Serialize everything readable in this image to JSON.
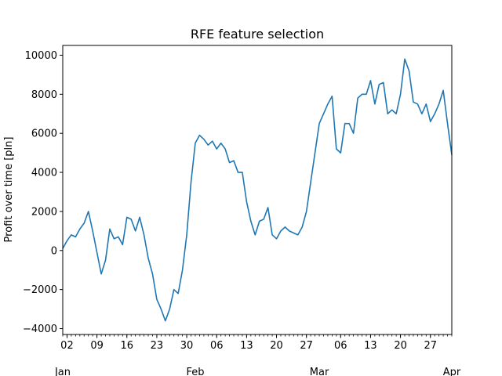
{
  "chart_data": {
    "type": "line",
    "title": "RFE feature selection",
    "xlabel": "",
    "ylabel": "Profit over time [pln]",
    "x_type": "date",
    "xlim": [
      "2016-01-01",
      "2016-04-01"
    ],
    "ylim": [
      -4300,
      10500
    ],
    "y_ticks": [
      -4000,
      -2000,
      0,
      2000,
      4000,
      6000,
      8000,
      10000
    ],
    "y_tick_labels": [
      "−4000",
      "−2000",
      "0",
      "2000",
      "4000",
      "6000",
      "8000",
      "10000"
    ],
    "x_day_ticks": [
      {
        "date": "2016-01-02",
        "label": "02"
      },
      {
        "date": "2016-01-09",
        "label": "09"
      },
      {
        "date": "2016-01-16",
        "label": "16"
      },
      {
        "date": "2016-01-23",
        "label": "23"
      },
      {
        "date": "2016-01-30",
        "label": "30"
      },
      {
        "date": "2016-02-06",
        "label": "06"
      },
      {
        "date": "2016-02-13",
        "label": "13"
      },
      {
        "date": "2016-02-20",
        "label": "20"
      },
      {
        "date": "2016-02-27",
        "label": "27"
      },
      {
        "date": "2016-03-06",
        "label": "06"
      },
      {
        "date": "2016-03-13",
        "label": "13"
      },
      {
        "date": "2016-03-20",
        "label": "20"
      },
      {
        "date": "2016-03-27",
        "label": "27"
      }
    ],
    "x_month_ticks": [
      {
        "date": "2016-01-01",
        "label": "Jan"
      },
      {
        "date": "2016-02-01",
        "label": "Feb"
      },
      {
        "date": "2016-03-01",
        "label": "Mar"
      },
      {
        "date": "2016-04-01",
        "label": "Apr"
      }
    ],
    "grid": false,
    "line_color": "#1f77b4",
    "series": [
      {
        "x": [
          "2016-01-01",
          "2016-01-02",
          "2016-01-03",
          "2016-01-04",
          "2016-01-05",
          "2016-01-06",
          "2016-01-07",
          "2016-01-08",
          "2016-01-09",
          "2016-01-10",
          "2016-01-11",
          "2016-01-12",
          "2016-01-13",
          "2016-01-14",
          "2016-01-15",
          "2016-01-16",
          "2016-01-17",
          "2016-01-18",
          "2016-01-19",
          "2016-01-20",
          "2016-01-21",
          "2016-01-22",
          "2016-01-23",
          "2016-01-24",
          "2016-01-25",
          "2016-01-26",
          "2016-01-27",
          "2016-01-28",
          "2016-01-29",
          "2016-01-30",
          "2016-01-31",
          "2016-02-01",
          "2016-02-02",
          "2016-02-03",
          "2016-02-04",
          "2016-02-05",
          "2016-02-06",
          "2016-02-07",
          "2016-02-08",
          "2016-02-09",
          "2016-02-10",
          "2016-02-11",
          "2016-02-12",
          "2016-02-13",
          "2016-02-14",
          "2016-02-15",
          "2016-02-16",
          "2016-02-17",
          "2016-02-18",
          "2016-02-19",
          "2016-02-20",
          "2016-02-21",
          "2016-02-22",
          "2016-02-23",
          "2016-02-24",
          "2016-02-25",
          "2016-02-26",
          "2016-02-27",
          "2016-02-28",
          "2016-02-29",
          "2016-03-01",
          "2016-03-02",
          "2016-03-03",
          "2016-03-04",
          "2016-03-05",
          "2016-03-06",
          "2016-03-07",
          "2016-03-08",
          "2016-03-09",
          "2016-03-10",
          "2016-03-11",
          "2016-03-12",
          "2016-03-13",
          "2016-03-14",
          "2016-03-15",
          "2016-03-16",
          "2016-03-17",
          "2016-03-18",
          "2016-03-19",
          "2016-03-20",
          "2016-03-21",
          "2016-03-22",
          "2016-03-23",
          "2016-03-24",
          "2016-03-25",
          "2016-03-26",
          "2016-03-27",
          "2016-03-28",
          "2016-03-29",
          "2016-03-30",
          "2016-03-31",
          "2016-04-01"
        ],
        "values": [
          100,
          500,
          800,
          700,
          1100,
          1400,
          2000,
          1000,
          -100,
          -1200,
          -500,
          1100,
          600,
          700,
          300,
          1700,
          1600,
          1000,
          1700,
          800,
          -400,
          -1200,
          -2500,
          -3000,
          -3600,
          -3000,
          -2000,
          -2200,
          -1000,
          800,
          3500,
          5500,
          5900,
          5700,
          5400,
          5600,
          5200,
          5500,
          5200,
          4500,
          4600,
          4000,
          4000,
          2500,
          1500,
          800,
          1500,
          1600,
          2200,
          800,
          600,
          1000,
          1200,
          1000,
          900,
          800,
          1200,
          2000,
          3500,
          5000,
          6500,
          7000,
          7500,
          7900,
          5200,
          5000,
          6500,
          6500,
          6000,
          7800,
          8000,
          8000,
          8700,
          7500,
          8500,
          8600,
          7000,
          7200,
          7000,
          8000,
          9800,
          9200,
          7600,
          7500,
          7000,
          7500,
          6600,
          7000,
          7500,
          8200,
          6500,
          4900
        ]
      }
    ]
  }
}
